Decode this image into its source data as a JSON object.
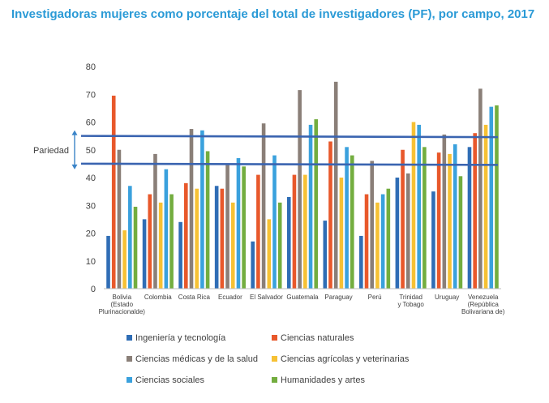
{
  "chart_data": {
    "type": "bar",
    "title": "Investigadoras mujeres como porcentaje del total de investigadores (PF), por campo, 2017",
    "xlabel": "",
    "ylabel": "",
    "ylim": [
      0,
      80
    ],
    "yticks": [
      0,
      10,
      20,
      30,
      40,
      50,
      60,
      70,
      80
    ],
    "grid": false,
    "legend_position": "bottom",
    "categories": [
      [
        "Bolivia",
        "(Estado",
        "Plurinacionalde)"
      ],
      [
        "Colombia"
      ],
      [
        "Costa Rica"
      ],
      [
        "Ecuador"
      ],
      [
        "El Salvador"
      ],
      [
        "Guatemala"
      ],
      [
        "Paraguay"
      ],
      [
        "Perú"
      ],
      [
        "Trinidad",
        "y Tobago"
      ],
      [
        "Uruguay"
      ],
      [
        "Venezuela",
        "(República",
        "Bolivariana de)"
      ]
    ],
    "series": [
      {
        "name": "Ingeniería y tecnología",
        "color": "#2f6db5",
        "values": [
          19,
          25,
          24,
          37,
          17,
          33,
          24.5,
          19,
          40,
          35,
          51
        ]
      },
      {
        "name": "Ciencias naturales",
        "color": "#e8582b",
        "values": [
          69.5,
          34,
          38,
          36,
          41,
          41,
          53,
          34,
          50,
          49,
          56
        ]
      },
      {
        "name": "Ciencias médicas y de la salud",
        "color": "#8a7f78",
        "values": [
          50,
          48.5,
          57.5,
          44.5,
          59.5,
          71.5,
          74.5,
          46,
          41.5,
          55.5,
          72
        ]
      },
      {
        "name": "Ciencias agrícolas y veterinarias",
        "color": "#f6c134",
        "values": [
          21,
          31,
          36,
          31,
          25,
          41,
          40,
          31,
          60,
          48.5,
          59
        ]
      },
      {
        "name": "Ciencias sociales",
        "color": "#3aa1dd",
        "values": [
          37,
          43,
          57,
          47,
          48,
          59,
          51,
          34,
          59,
          52,
          65.5
        ]
      },
      {
        "name": "Humanidades y artes",
        "color": "#73ad3f",
        "values": [
          29.5,
          34,
          49.5,
          44,
          31,
          61,
          48,
          36,
          51,
          40.5,
          66
        ]
      }
    ],
    "annotation": {
      "label": "Pariedad",
      "range": [
        45,
        55
      ],
      "line_color": "#3a64b0",
      "arrow_color": "#3a84c8"
    }
  }
}
